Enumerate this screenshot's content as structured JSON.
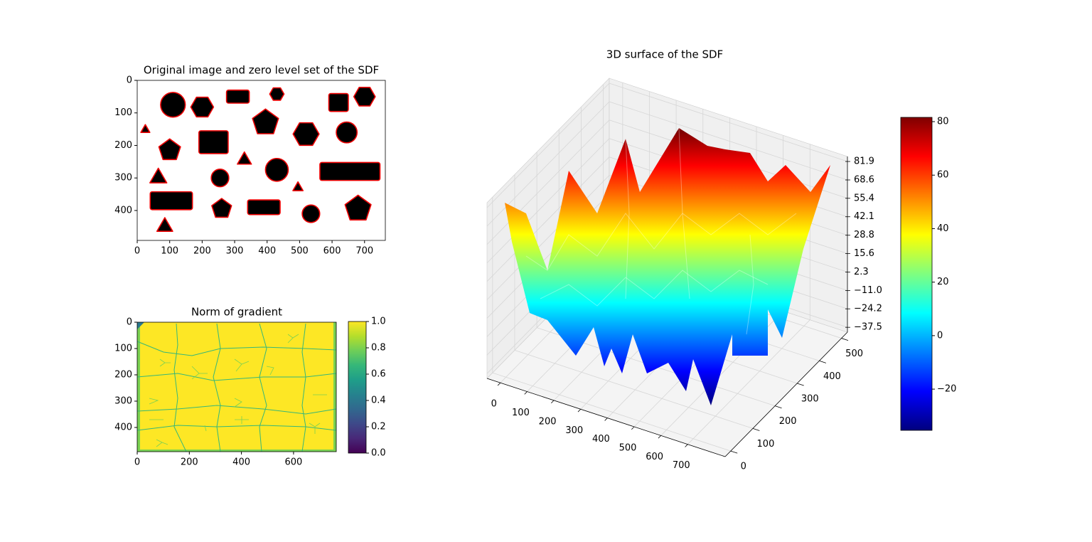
{
  "chart_data": [
    {
      "type": "image",
      "title": "Original image and zero level set of the SDF",
      "xlim": [
        0,
        764
      ],
      "ylim": [
        492,
        0
      ],
      "xticks": [
        0,
        100,
        200,
        300,
        400,
        500,
        600,
        700
      ],
      "yticks": [
        0,
        100,
        200,
        300,
        400
      ]
    },
    {
      "type": "heatmap",
      "title": "Norm of gradient",
      "xlim": [
        0,
        764
      ],
      "ylim": [
        492,
        0
      ],
      "xticks": [
        0,
        200,
        400,
        600
      ],
      "yticks": [
        0,
        100,
        200,
        300,
        400
      ],
      "colorbar": {
        "colormap": "viridis",
        "lim": [
          0,
          1
        ],
        "ticks": [
          {
            "value": 0,
            "label": "0.0"
          },
          0.2,
          0.4,
          0.6,
          0.8,
          {
            "value": 1,
            "label": "1.0"
          }
        ]
      }
    },
    {
      "type": "surface3d",
      "title": "3D surface of the SDF",
      "colormap": "jet",
      "xlim": [
        -50,
        840
      ],
      "ylim": [
        -25,
        527
      ],
      "zlim": [
        -41,
        85.5
      ],
      "xticks": [
        0,
        100,
        200,
        300,
        400,
        500,
        600,
        700
      ],
      "yticks": [
        0,
        100,
        200,
        300,
        400,
        500
      ],
      "zticks": [
        {
          "value": -37.5,
          "label": "−37.5"
        },
        {
          "value": -24.2,
          "label": "−24.2"
        },
        {
          "value": -11,
          "label": "−11.0"
        },
        2.3,
        15.6,
        28.8,
        42.1,
        55.4,
        68.6,
        81.9
      ],
      "colorbar": {
        "colormap": "jet",
        "lim": [
          -35.4,
          81.6
        ],
        "ticks": [
          {
            "value": -20,
            "label": "−20"
          },
          0,
          20,
          40,
          60,
          80
        ]
      }
    }
  ]
}
